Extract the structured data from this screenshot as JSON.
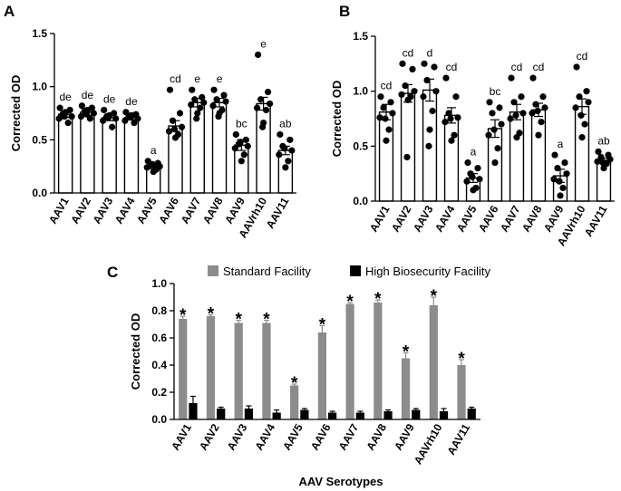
{
  "chart_data": [
    {
      "type": "bar",
      "panel": "A",
      "categories": [
        "AAV1",
        "AAV2",
        "AAV3",
        "AAV4",
        "AAV5",
        "AAV6",
        "AAV7",
        "AAV8",
        "AAV9",
        "AAVrh10",
        "AAV11"
      ],
      "values": [
        0.74,
        0.76,
        0.71,
        0.71,
        0.25,
        0.63,
        0.85,
        0.85,
        0.45,
        0.84,
        0.4
      ],
      "errors": [
        0.03,
        0.03,
        0.03,
        0.02,
        0.02,
        0.05,
        0.04,
        0.04,
        0.05,
        0.06,
        0.04
      ],
      "points": [
        [
          0.8,
          0.78,
          0.74,
          0.72,
          0.7,
          0.66,
          0.76,
          0.72
        ],
        [
          0.82,
          0.8,
          0.77,
          0.75,
          0.72,
          0.7,
          0.78,
          0.74
        ],
        [
          0.78,
          0.75,
          0.72,
          0.7,
          0.68,
          0.62,
          0.73,
          0.71
        ],
        [
          0.76,
          0.74,
          0.72,
          0.7,
          0.68,
          0.66,
          0.73,
          0.71
        ],
        [
          0.3,
          0.28,
          0.26,
          0.25,
          0.24,
          0.22,
          0.2,
          0.27
        ],
        [
          0.97,
          0.75,
          0.68,
          0.62,
          0.58,
          0.55,
          0.52,
          0.6
        ],
        [
          0.97,
          0.9,
          0.88,
          0.85,
          0.83,
          0.8,
          0.75,
          0.7
        ],
        [
          0.97,
          0.92,
          0.88,
          0.86,
          0.82,
          0.78,
          0.75,
          0.72
        ],
        [
          0.55,
          0.5,
          0.46,
          0.44,
          0.42,
          0.36,
          0.3,
          0.48
        ],
        [
          1.3,
          0.95,
          0.88,
          0.84,
          0.8,
          0.78,
          0.66,
          0.62
        ],
        [
          0.55,
          0.5,
          0.44,
          0.4,
          0.36,
          0.3,
          0.24,
          0.42
        ]
      ],
      "letters": [
        "de",
        "de",
        "de",
        "de",
        "a",
        "cd",
        "e",
        "e",
        "bc",
        "e",
        "ab"
      ],
      "ylabel": "Corrected OD",
      "ylim": [
        0,
        1.5
      ],
      "yticks": [
        "0.0",
        "0.5",
        "1.0",
        "1.5"
      ]
    },
    {
      "type": "bar",
      "panel": "B",
      "categories": [
        "AAV1",
        "AAV2",
        "AAV3",
        "AAV4",
        "AAV5",
        "AAV6",
        "AAV7",
        "AAV8",
        "AAV9",
        "AAVrh10",
        "AAV11"
      ],
      "values": [
        0.81,
        0.98,
        1.01,
        0.78,
        0.21,
        0.66,
        0.81,
        0.83,
        0.23,
        0.86,
        0.37
      ],
      "errors": [
        0.07,
        0.08,
        0.1,
        0.07,
        0.04,
        0.08,
        0.07,
        0.06,
        0.06,
        0.07,
        0.02
      ],
      "points": [
        [
          0.95,
          0.9,
          0.85,
          0.8,
          0.76,
          0.65,
          0.55,
          0.75
        ],
        [
          1.25,
          1.2,
          1.05,
          1.0,
          0.97,
          0.95,
          0.92,
          0.4
        ],
        [
          1.25,
          1.22,
          1.1,
          1.0,
          0.95,
          0.82,
          0.65,
          0.5
        ],
        [
          1.12,
          0.95,
          0.8,
          0.76,
          0.72,
          0.6,
          0.55,
          0.75
        ],
        [
          0.35,
          0.3,
          0.25,
          0.2,
          0.18,
          0.12,
          0.1,
          0.22
        ],
        [
          0.9,
          0.85,
          0.8,
          0.7,
          0.6,
          0.48,
          0.35,
          0.65
        ],
        [
          1.12,
          0.95,
          0.9,
          0.8,
          0.75,
          0.62,
          0.58,
          0.78
        ],
        [
          1.12,
          0.95,
          0.88,
          0.85,
          0.8,
          0.72,
          0.6,
          0.82
        ],
        [
          0.42,
          0.35,
          0.3,
          0.25,
          0.2,
          0.12,
          0.05,
          0.18
        ],
        [
          1.22,
          1.0,
          0.95,
          0.9,
          0.85,
          0.7,
          0.58,
          0.78
        ],
        [
          0.45,
          0.42,
          0.4,
          0.38,
          0.36,
          0.34,
          0.3,
          0.35
        ]
      ],
      "letters": [
        "cd",
        "cd",
        "d",
        "cd",
        "a",
        "bc",
        "cd",
        "cd",
        "a",
        "cd",
        "ab"
      ],
      "ylabel": "Corrected OD",
      "ylim": [
        0,
        1.5
      ],
      "yticks": [
        "0.0",
        "0.5",
        "1.0",
        "1.5"
      ]
    },
    {
      "type": "bar",
      "panel": "C",
      "categories": [
        "AAV1",
        "AAV2",
        "AAV3",
        "AAV4",
        "AAV5",
        "AAV6",
        "AAV7",
        "AAV8",
        "AAV9",
        "AAVrh10",
        "AAV11"
      ],
      "series": [
        {
          "name": "Standard Facility",
          "color": "#8c8c8c",
          "values": [
            0.74,
            0.76,
            0.71,
            0.71,
            0.25,
            0.64,
            0.85,
            0.86,
            0.45,
            0.84,
            0.4
          ],
          "errors": [
            0.02,
            0.01,
            0.02,
            0.02,
            0.01,
            0.05,
            0.01,
            0.02,
            0.04,
            0.06,
            0.04
          ]
        },
        {
          "name": "High Biosecurity Facility",
          "color": "#000000",
          "values": [
            0.12,
            0.08,
            0.08,
            0.05,
            0.07,
            0.05,
            0.05,
            0.06,
            0.07,
            0.06,
            0.08
          ],
          "errors": [
            0.05,
            0.01,
            0.02,
            0.02,
            0.01,
            0.01,
            0.01,
            0.01,
            0.01,
            0.02,
            0.01
          ]
        }
      ],
      "stars": [
        "*",
        "*",
        "*",
        "*",
        "*",
        "*",
        "*",
        "*",
        "*",
        "*",
        "*"
      ],
      "ylabel": "Corrected OD",
      "xlabel": "AAV Serotypes",
      "ylim": [
        0,
        1.0
      ],
      "yticks": [
        "0.0",
        "0.2",
        "0.4",
        "0.6",
        "0.8",
        "1.0"
      ],
      "legend": "top"
    }
  ],
  "panel_labels": {
    "a": "A",
    "b": "B",
    "c": "C"
  },
  "colors": {
    "bar_fill": "#ffffff",
    "outline": "#000000",
    "gray": "#8c8c8c"
  }
}
